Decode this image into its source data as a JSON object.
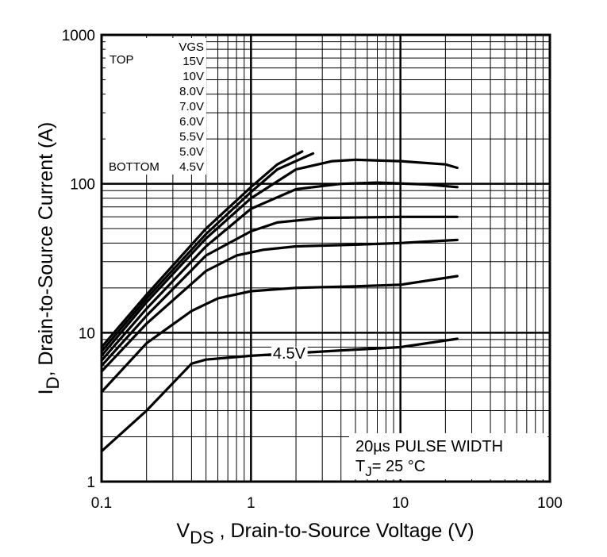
{
  "chart_data": {
    "type": "line",
    "x_scale": "log",
    "y_scale": "log",
    "xlim": [
      0.1,
      100
    ],
    "ylim": [
      1,
      1000
    ],
    "grid": true,
    "xlabel": {
      "main": "V",
      "sub": "DS",
      "rest": " , Drain-to-Source Voltage (V)"
    },
    "ylabel": {
      "main": "I",
      "sub": "D",
      "rest": ",  Drain-to-Source Current (A)"
    },
    "x_ticks": [
      {
        "v": 0.1,
        "label": "0.1"
      },
      {
        "v": 1,
        "label": "1"
      },
      {
        "v": 10,
        "label": "10"
      },
      {
        "v": 100,
        "label": "100"
      }
    ],
    "y_ticks": [
      {
        "v": 1,
        "label": "1"
      },
      {
        "v": 10,
        "label": "10"
      },
      {
        "v": 100,
        "label": "100"
      },
      {
        "v": 1000,
        "label": "1000"
      }
    ],
    "legend": {
      "header": "VGS",
      "top_label": "TOP",
      "bottom_label": "BOTTOM",
      "entries": [
        "15V",
        "10V",
        "8.0V",
        "7.0V",
        "6.0V",
        "5.5V",
        "5.0V",
        "4.5V"
      ]
    },
    "annotations": {
      "curve_label": "4.5V",
      "pulse": "20µs PULSE WIDTH",
      "tj_main": "T",
      "tj_sub": "J",
      "tj_rest": "= 25 °C"
    },
    "series": [
      {
        "vgs": "15V",
        "points": [
          [
            0.1,
            8
          ],
          [
            0.2,
            18
          ],
          [
            0.5,
            50
          ],
          [
            1,
            95
          ],
          [
            1.5,
            135
          ],
          [
            2.2,
            165
          ]
        ]
      },
      {
        "vgs": "10V",
        "points": [
          [
            0.1,
            7.5
          ],
          [
            0.2,
            17
          ],
          [
            0.5,
            46
          ],
          [
            1,
            88
          ],
          [
            1.5,
            125
          ],
          [
            2.6,
            160
          ]
        ]
      },
      {
        "vgs": "8.0V",
        "points": [
          [
            0.1,
            7
          ],
          [
            0.2,
            16
          ],
          [
            0.5,
            43
          ],
          [
            1,
            80
          ],
          [
            2,
            125
          ],
          [
            3.5,
            142
          ],
          [
            5,
            145
          ],
          [
            10,
            142
          ],
          [
            20,
            135
          ],
          [
            24,
            128
          ]
        ]
      },
      {
        "vgs": "7.0V",
        "points": [
          [
            0.1,
            6.5
          ],
          [
            0.2,
            14.5
          ],
          [
            0.5,
            38
          ],
          [
            1,
            68
          ],
          [
            2,
            92
          ],
          [
            4,
            100
          ],
          [
            7,
            102
          ],
          [
            15,
            99
          ],
          [
            24,
            95
          ]
        ]
      },
      {
        "vgs": "6.0V",
        "points": [
          [
            0.1,
            6
          ],
          [
            0.2,
            13
          ],
          [
            0.5,
            33
          ],
          [
            1,
            48
          ],
          [
            1.5,
            55
          ],
          [
            3,
            59
          ],
          [
            10,
            60
          ],
          [
            24,
            60
          ]
        ]
      },
      {
        "vgs": "5.5V",
        "points": [
          [
            0.1,
            5.5
          ],
          [
            0.2,
            11.5
          ],
          [
            0.5,
            26
          ],
          [
            0.8,
            33
          ],
          [
            1.2,
            36
          ],
          [
            2,
            38
          ],
          [
            5,
            39
          ],
          [
            10,
            40
          ],
          [
            24,
            42
          ]
        ]
      },
      {
        "vgs": "5.0V",
        "points": [
          [
            0.1,
            4
          ],
          [
            0.2,
            8.5
          ],
          [
            0.4,
            14
          ],
          [
            0.6,
            17
          ],
          [
            1,
            19
          ],
          [
            2,
            20
          ],
          [
            5,
            20.5
          ],
          [
            10,
            21
          ],
          [
            24,
            24
          ]
        ]
      },
      {
        "vgs": "4.5V",
        "points": [
          [
            0.1,
            1.6
          ],
          [
            0.2,
            3
          ],
          [
            0.4,
            6.2
          ],
          [
            0.5,
            6.6
          ],
          [
            1,
            7
          ],
          [
            2,
            7.3
          ],
          [
            5,
            7.7
          ],
          [
            10,
            8
          ],
          [
            24,
            9.1
          ]
        ]
      }
    ]
  }
}
